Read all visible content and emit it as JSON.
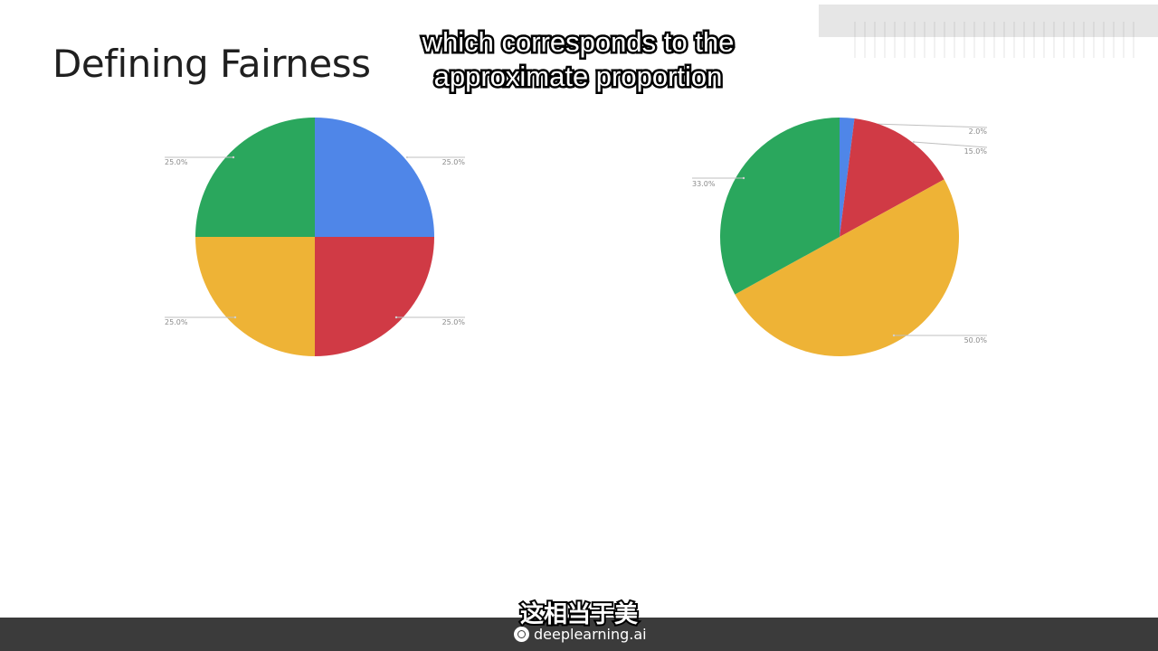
{
  "slide": {
    "title": "Defining Fairness"
  },
  "captions": {
    "english_line1": "which corresponds to the",
    "english_line2": "approximate proportion",
    "chinese": "这相当于美"
  },
  "branding": {
    "name": "deeplearning.ai",
    "logo_icon": "deeplearning-logo-icon",
    "bar_color": "#3b3b3b"
  },
  "chart_data": [
    {
      "type": "pie",
      "slices": [
        {
          "value": 25.0,
          "label": "25.0%",
          "color": "#4f86e8"
        },
        {
          "value": 25.0,
          "label": "25.0%",
          "color": "#d03a45"
        },
        {
          "value": 25.0,
          "label": "25.0%",
          "color": "#eeb336"
        },
        {
          "value": 25.0,
          "label": "25.0%",
          "color": "#2aa75d"
        }
      ]
    },
    {
      "type": "pie",
      "slices": [
        {
          "value": 2.0,
          "label": "2.0%",
          "color": "#4f86e8"
        },
        {
          "value": 15.0,
          "label": "15.0%",
          "color": "#d03a45"
        },
        {
          "value": 50.0,
          "label": "50.0%",
          "color": "#eeb336"
        },
        {
          "value": 33.0,
          "label": "33.0%",
          "color": "#2aa75d"
        }
      ]
    }
  ]
}
